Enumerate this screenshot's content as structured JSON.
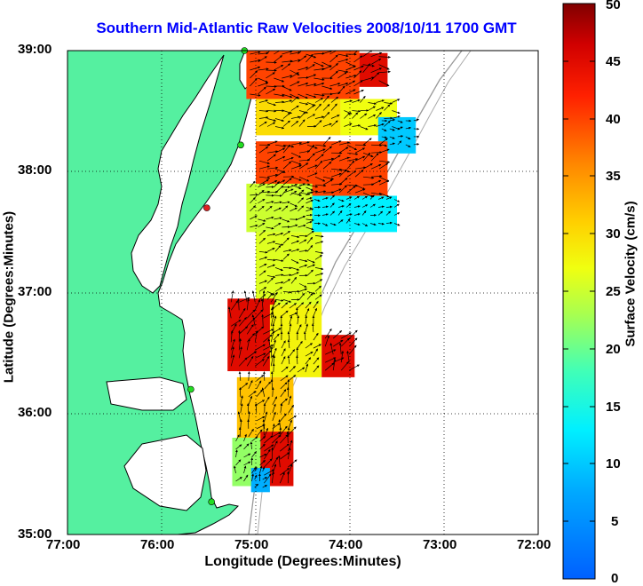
{
  "title": "Southern Mid-Atlantic Raw Velocities 2008/10/11 1700 GMT",
  "map": {
    "xlabel": "Longitude (Degrees:Minutes)",
    "ylabel": "Latitude (Degrees:Minutes)",
    "x_ticks": [
      "77:00",
      "76:00",
      "75:00",
      "74:00",
      "73:00",
      "72:00"
    ],
    "y_ticks": [
      "39:00",
      "38:00",
      "37:00",
      "36:00",
      "35:00"
    ],
    "lon_range": [
      -77,
      -72
    ],
    "lat_range": [
      35,
      39
    ],
    "grid": true
  },
  "colorbar": {
    "label": "Surface Velocity (cm/s)",
    "ticks": [
      "50",
      "45",
      "40",
      "35",
      "30",
      "25",
      "20",
      "15",
      "10",
      "5",
      "0"
    ],
    "range": [
      0,
      50
    ]
  },
  "colors": {
    "land": "#55f0a0",
    "water": "#ffffff",
    "title": "#0000ff",
    "station": "#22dd22",
    "station_off": "#e02020"
  },
  "stations": [
    {
      "lon": -75.12,
      "lat": 39.0,
      "status": "on"
    },
    {
      "lon": -75.16,
      "lat": 38.22,
      "status": "on"
    },
    {
      "lon": -75.52,
      "lat": 37.7,
      "status": "off"
    },
    {
      "lon": -75.69,
      "lat": 36.2,
      "status": "on"
    },
    {
      "lon": -75.47,
      "lat": 35.27,
      "status": "on"
    }
  ],
  "chart_data": {
    "type": "heatmap",
    "title": "Southern Mid-Atlantic Raw Velocities 2008/10/11 1700 GMT",
    "xlabel": "Longitude (Degrees:Minutes)",
    "ylabel": "Latitude (Degrees:Minutes)",
    "xlim": [
      -77,
      -72
    ],
    "ylim": [
      35,
      39
    ],
    "colorbar_label": "Surface Velocity (cm/s)",
    "clim": [
      0,
      50
    ],
    "regions": [
      {
        "lon": [
          -75.1,
          -73.9
        ],
        "lat": [
          38.6,
          39.0
        ],
        "speed": 40
      },
      {
        "lon": [
          -73.9,
          -73.6
        ],
        "lat": [
          38.7,
          38.98
        ],
        "speed": 45
      },
      {
        "lon": [
          -75.0,
          -74.1
        ],
        "lat": [
          38.3,
          38.6
        ],
        "speed": 30
      },
      {
        "lon": [
          -74.1,
          -73.5
        ],
        "lat": [
          38.3,
          38.6
        ],
        "speed": 27
      },
      {
        "lon": [
          -73.7,
          -73.3
        ],
        "lat": [
          38.15,
          38.45
        ],
        "speed": 10
      },
      {
        "lon": [
          -75.0,
          -73.6
        ],
        "lat": [
          37.8,
          38.25
        ],
        "speed": 40
      },
      {
        "lon": [
          -74.5,
          -73.5
        ],
        "lat": [
          37.5,
          37.8
        ],
        "speed": 13
      },
      {
        "lon": [
          -75.1,
          -74.4
        ],
        "lat": [
          37.5,
          37.9
        ],
        "speed": 25
      },
      {
        "lon": [
          -75.0,
          -74.3
        ],
        "lat": [
          36.9,
          37.5
        ],
        "speed": 26
      },
      {
        "lon": [
          -75.3,
          -74.8
        ],
        "lat": [
          36.35,
          36.95
        ],
        "speed": 45
      },
      {
        "lon": [
          -74.85,
          -74.3
        ],
        "lat": [
          36.3,
          36.9
        ],
        "speed": 28
      },
      {
        "lon": [
          -74.3,
          -73.95
        ],
        "lat": [
          36.3,
          36.65
        ],
        "speed": 45
      },
      {
        "lon": [
          -75.2,
          -74.6
        ],
        "lat": [
          35.75,
          36.3
        ],
        "speed": 32
      },
      {
        "lon": [
          -75.25,
          -74.9
        ],
        "lat": [
          35.4,
          35.8
        ],
        "speed": 22
      },
      {
        "lon": [
          -74.95,
          -74.6
        ],
        "lat": [
          35.4,
          35.85
        ],
        "speed": 45
      },
      {
        "lon": [
          -75.05,
          -74.85
        ],
        "lat": [
          35.35,
          35.55
        ],
        "speed": 8
      }
    ]
  }
}
